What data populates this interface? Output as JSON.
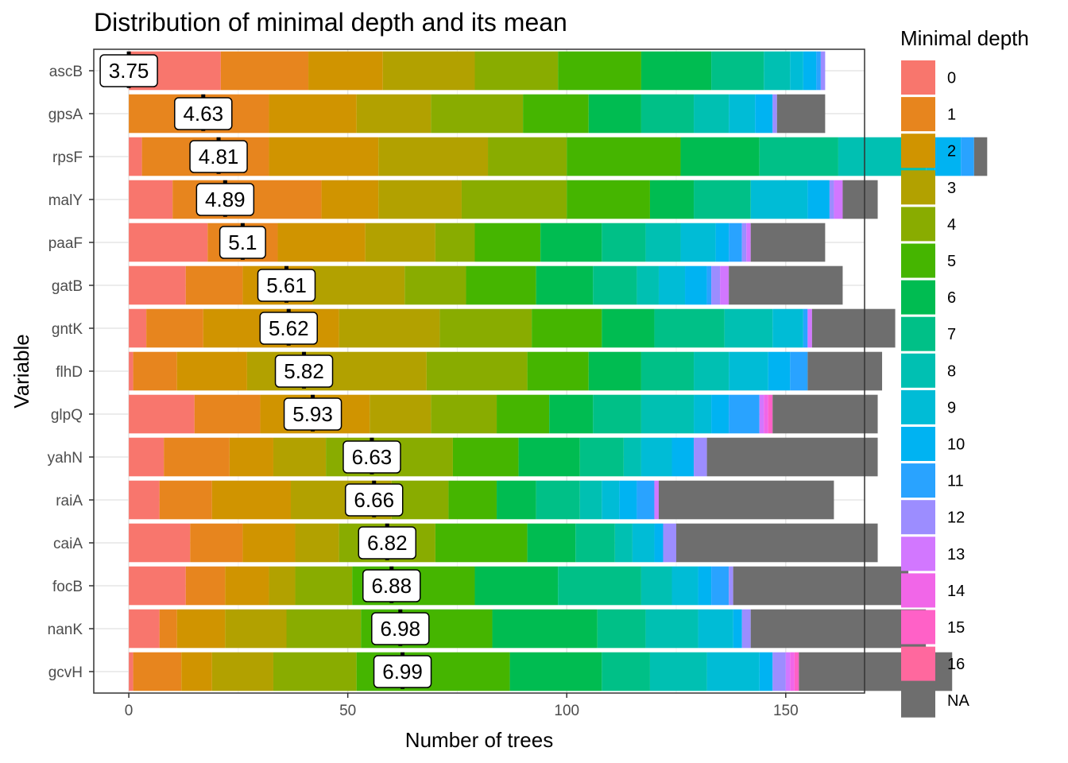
{
  "chart_data": {
    "type": "bar",
    "orientation": "horizontal",
    "stacked": true,
    "title": "Distribution of minimal depth and its mean",
    "xlabel": "Number of trees",
    "ylabel": "Variable",
    "xlim": [
      -8,
      168
    ],
    "xticks": [
      0,
      50,
      100,
      150
    ],
    "grid": true,
    "legend": {
      "title": "Minimal depth",
      "position": "right",
      "entries": [
        "0",
        "1",
        "2",
        "3",
        "4",
        "5",
        "6",
        "7",
        "8",
        "9",
        "10",
        "11",
        "12",
        "13",
        "14",
        "15",
        "16",
        "NA"
      ],
      "colors": [
        "#F8766D",
        "#E7851E",
        "#D09400",
        "#B2A100",
        "#89AC00",
        "#45B500",
        "#00BC51",
        "#00C087",
        "#00C0B2",
        "#00BCD6",
        "#00B3F2",
        "#29A3FF",
        "#9C8DFF",
        "#D277FF",
        "#F166E8",
        "#FF61C7",
        "#FF689E",
        "#6E6E6E"
      ]
    },
    "categories": [
      "ascB",
      "gpsA",
      "rpsF",
      "malY",
      "paaF",
      "gatB",
      "gntK",
      "flhD",
      "glpQ",
      "yahN",
      "raiA",
      "caiA",
      "focB",
      "nanK",
      "gcvH"
    ],
    "means": [
      3.75,
      4.63,
      4.81,
      4.89,
      5.1,
      5.61,
      5.62,
      5.82,
      5.93,
      6.63,
      6.66,
      6.82,
      6.88,
      6.98,
      6.99
    ],
    "mean_positions": [
      0,
      17,
      20.5,
      22,
      26,
      36,
      36.5,
      40,
      42,
      55.5,
      56,
      59,
      60,
      62,
      62.5
    ],
    "counts": [
      [
        21,
        20,
        17,
        21,
        19,
        19,
        16,
        12,
        6,
        3,
        3,
        1,
        1,
        0,
        0,
        0,
        0,
        0
      ],
      [
        0,
        32,
        20,
        17,
        21,
        15,
        12,
        12,
        8,
        6,
        4,
        0,
        1,
        0,
        0,
        0,
        0,
        11
      ],
      [
        3,
        29,
        25,
        25,
        18,
        26,
        18,
        18,
        20,
        2,
        6,
        3,
        0,
        0,
        0,
        0,
        0,
        3
      ],
      [
        10,
        34,
        13,
        19,
        24,
        19,
        10,
        13,
        0,
        13,
        5,
        0,
        1,
        2,
        0,
        0,
        0,
        8
      ],
      [
        18,
        16,
        20,
        16,
        9,
        15,
        14,
        10,
        8,
        8,
        3,
        3,
        1,
        1,
        0,
        0,
        0,
        17
      ],
      [
        13,
        13,
        16,
        21,
        14,
        16,
        13,
        10,
        5,
        6,
        5,
        1,
        2,
        2,
        0,
        0,
        0,
        26
      ],
      [
        4,
        13,
        31,
        23,
        21,
        16,
        12,
        16,
        11,
        7,
        0,
        1,
        0,
        1,
        0,
        0,
        0,
        19
      ],
      [
        1,
        10,
        16,
        41,
        23,
        14,
        12,
        12,
        8,
        9,
        5,
        4,
        0,
        0,
        0,
        0,
        0,
        17
      ],
      [
        15,
        15,
        25,
        14,
        15,
        12,
        10,
        11,
        12,
        4,
        4,
        7,
        0,
        1,
        1,
        1,
        0,
        24
      ],
      [
        8,
        15,
        10,
        12,
        29,
        15,
        14,
        10,
        4,
        7,
        5,
        0,
        3,
        0,
        0,
        0,
        0,
        39
      ],
      [
        7,
        12,
        18,
        23,
        13,
        11,
        9,
        10,
        5,
        4,
        4,
        4,
        0,
        1,
        0,
        0,
        0,
        40
      ],
      [
        14,
        12,
        12,
        10,
        22,
        21,
        11,
        9,
        4,
        5,
        2,
        0,
        3,
        0,
        0,
        0,
        0,
        46
      ],
      [
        13,
        9,
        10,
        6,
        13,
        28,
        19,
        19,
        7,
        6,
        3,
        4,
        1,
        0,
        0,
        0,
        0,
        40
      ],
      [
        7,
        4,
        11,
        14,
        17,
        30,
        24,
        11,
        12,
        8,
        2,
        0,
        2,
        0,
        0,
        0,
        0,
        40
      ],
      [
        1,
        11,
        7,
        14,
        19,
        35,
        21,
        11,
        13,
        12,
        3,
        0,
        3,
        1,
        1,
        1,
        0,
        35
      ]
    ]
  }
}
